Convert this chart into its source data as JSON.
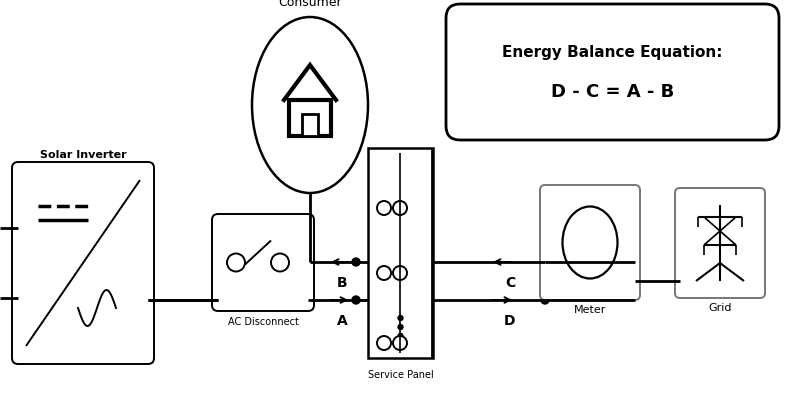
{
  "bg_color": "#ffffff",
  "solar_inverter_label": "Solar Inverter",
  "ac_disconnect_label": "AC Disconnect",
  "service_panel_label": "Service Panel",
  "meter_label": "Meter",
  "grid_label": "Grid",
  "consumer_label": "Consumer",
  "eq_line1": "Energy Balance Equation:",
  "eq_line2": "D - C = A - B"
}
